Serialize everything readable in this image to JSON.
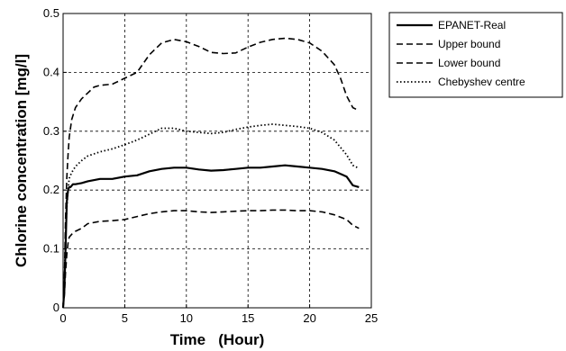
{
  "chart_data": {
    "type": "line",
    "title": "",
    "xlabel": "Time   (Hour)",
    "ylabel": "Chlorine concentration [mg/l]",
    "xlim": [
      0,
      25
    ],
    "ylim": [
      0,
      0.5
    ],
    "xticks": [
      "0",
      "5",
      "10",
      "15",
      "20",
      "25"
    ],
    "yticks": [
      "0",
      "0.1",
      "0.2",
      "0.3",
      "0.4",
      "0.5"
    ],
    "grid": true,
    "legend_position": "top-right, outside plot area",
    "series": [
      {
        "name": "EPANET-Real",
        "style": "solid",
        "color": "#000000",
        "x": [
          0,
          0.1,
          0.2,
          0.3,
          0.4,
          0.5,
          0.6,
          0.8,
          1,
          1.5,
          2,
          3,
          4,
          5,
          6,
          7,
          8,
          9,
          10,
          11,
          12,
          13,
          14,
          15,
          16,
          17,
          18,
          19,
          20,
          21,
          22,
          23,
          23.5,
          24
        ],
        "y": [
          0,
          0.03,
          0.1,
          0.18,
          0.2,
          0.205,
          0.205,
          0.21,
          0.21,
          0.212,
          0.215,
          0.219,
          0.219,
          0.223,
          0.225,
          0.232,
          0.236,
          0.238,
          0.238,
          0.235,
          0.233,
          0.234,
          0.236,
          0.238,
          0.238,
          0.24,
          0.242,
          0.24,
          0.238,
          0.236,
          0.232,
          0.223,
          0.208,
          0.205
        ]
      },
      {
        "name": "Upper bound",
        "style": "dashed",
        "color": "#000000",
        "x": [
          0,
          0.1,
          0.2,
          0.3,
          0.4,
          0.5,
          0.7,
          1,
          1.5,
          2,
          2.5,
          3,
          4,
          5,
          6,
          6.5,
          7,
          7.5,
          8,
          9,
          10,
          11,
          12,
          13,
          14,
          15,
          16,
          17,
          18,
          19,
          20,
          21,
          22,
          22.5,
          23,
          23.5,
          24
        ],
        "y": [
          0,
          0.05,
          0.15,
          0.22,
          0.26,
          0.29,
          0.32,
          0.34,
          0.355,
          0.365,
          0.375,
          0.378,
          0.38,
          0.39,
          0.4,
          0.415,
          0.43,
          0.44,
          0.45,
          0.456,
          0.452,
          0.444,
          0.434,
          0.432,
          0.433,
          0.443,
          0.451,
          0.456,
          0.458,
          0.456,
          0.45,
          0.436,
          0.413,
          0.39,
          0.36,
          0.34,
          0.335
        ]
      },
      {
        "name": "Lower bound",
        "style": "dashed",
        "color": "#000000",
        "x": [
          0,
          0.1,
          0.2,
          0.3,
          0.4,
          0.5,
          0.7,
          1,
          1.5,
          2,
          3,
          4,
          5,
          6,
          7,
          8,
          9,
          10,
          11,
          12,
          13,
          14,
          15,
          16,
          17,
          18,
          19,
          20,
          21,
          22,
          23,
          23.5,
          24
        ],
        "y": [
          0,
          0.02,
          0.06,
          0.09,
          0.11,
          0.12,
          0.125,
          0.13,
          0.135,
          0.143,
          0.147,
          0.148,
          0.15,
          0.155,
          0.16,
          0.163,
          0.165,
          0.165,
          0.163,
          0.162,
          0.163,
          0.164,
          0.165,
          0.165,
          0.166,
          0.166,
          0.165,
          0.165,
          0.163,
          0.158,
          0.15,
          0.14,
          0.135
        ]
      },
      {
        "name": "Chebyshev centre",
        "style": "dotted",
        "color": "#000000",
        "x": [
          0,
          0.1,
          0.2,
          0.3,
          0.4,
          0.5,
          0.7,
          1,
          1.5,
          2,
          3,
          4,
          5,
          6,
          7,
          8,
          9,
          10,
          11,
          12,
          13,
          14,
          15,
          16,
          17,
          18,
          19,
          20,
          21,
          22,
          23,
          23.5,
          24
        ],
        "y": [
          0,
          0.04,
          0.12,
          0.17,
          0.2,
          0.22,
          0.23,
          0.24,
          0.25,
          0.258,
          0.265,
          0.27,
          0.277,
          0.285,
          0.295,
          0.305,
          0.305,
          0.3,
          0.298,
          0.296,
          0.298,
          0.303,
          0.307,
          0.31,
          0.312,
          0.31,
          0.308,
          0.305,
          0.298,
          0.285,
          0.26,
          0.242,
          0.237
        ]
      }
    ]
  }
}
